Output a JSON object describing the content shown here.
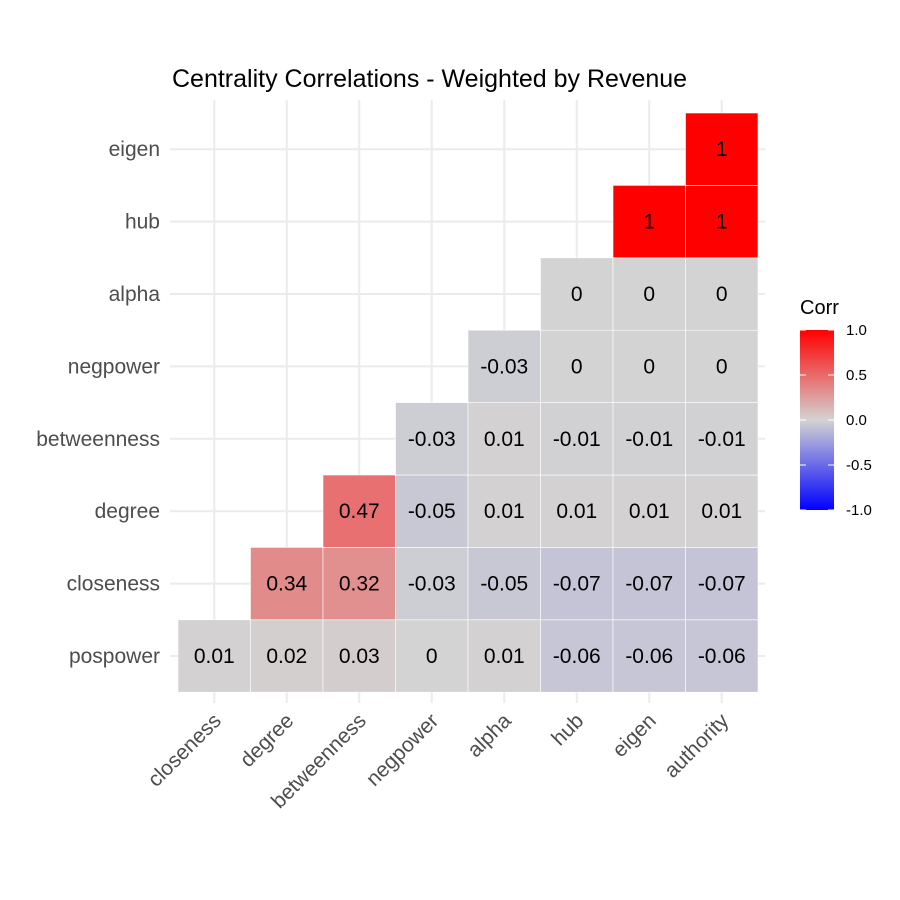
{
  "chart_data": {
    "type": "heatmap",
    "title": "Centrality Correlations - Weighted by Revenue",
    "x_categories": [
      "closeness",
      "degree",
      "betweenness",
      "negpower",
      "alpha",
      "hub",
      "eigen",
      "authority"
    ],
    "y_categories": [
      "pospower",
      "closeness",
      "degree",
      "betweenness",
      "negpower",
      "alpha",
      "hub",
      "eigen"
    ],
    "cells": [
      {
        "x": "closeness",
        "y": "pospower",
        "value": 0.01,
        "label": "0.01"
      },
      {
        "x": "degree",
        "y": "pospower",
        "value": 0.02,
        "label": "0.02"
      },
      {
        "x": "betweenness",
        "y": "pospower",
        "value": 0.03,
        "label": "0.03"
      },
      {
        "x": "negpower",
        "y": "pospower",
        "value": 0,
        "label": "0"
      },
      {
        "x": "alpha",
        "y": "pospower",
        "value": 0.01,
        "label": "0.01"
      },
      {
        "x": "hub",
        "y": "pospower",
        "value": -0.06,
        "label": "-0.06"
      },
      {
        "x": "eigen",
        "y": "pospower",
        "value": -0.06,
        "label": "-0.06"
      },
      {
        "x": "authority",
        "y": "pospower",
        "value": -0.06,
        "label": "-0.06"
      },
      {
        "x": "degree",
        "y": "closeness",
        "value": 0.34,
        "label": "0.34"
      },
      {
        "x": "betweenness",
        "y": "closeness",
        "value": 0.32,
        "label": "0.32"
      },
      {
        "x": "negpower",
        "y": "closeness",
        "value": -0.03,
        "label": "-0.03"
      },
      {
        "x": "alpha",
        "y": "closeness",
        "value": -0.05,
        "label": "-0.05"
      },
      {
        "x": "hub",
        "y": "closeness",
        "value": -0.07,
        "label": "-0.07"
      },
      {
        "x": "eigen",
        "y": "closeness",
        "value": -0.07,
        "label": "-0.07"
      },
      {
        "x": "authority",
        "y": "closeness",
        "value": -0.07,
        "label": "-0.07"
      },
      {
        "x": "betweenness",
        "y": "degree",
        "value": 0.47,
        "label": "0.47"
      },
      {
        "x": "negpower",
        "y": "degree",
        "value": -0.05,
        "label": "-0.05"
      },
      {
        "x": "alpha",
        "y": "degree",
        "value": 0.01,
        "label": "0.01"
      },
      {
        "x": "hub",
        "y": "degree",
        "value": 0.01,
        "label": "0.01"
      },
      {
        "x": "eigen",
        "y": "degree",
        "value": 0.01,
        "label": "0.01"
      },
      {
        "x": "authority",
        "y": "degree",
        "value": 0.01,
        "label": "0.01"
      },
      {
        "x": "negpower",
        "y": "betweenness",
        "value": -0.03,
        "label": "-0.03"
      },
      {
        "x": "alpha",
        "y": "betweenness",
        "value": 0.01,
        "label": "0.01"
      },
      {
        "x": "hub",
        "y": "betweenness",
        "value": -0.01,
        "label": "-0.01"
      },
      {
        "x": "eigen",
        "y": "betweenness",
        "value": -0.01,
        "label": "-0.01"
      },
      {
        "x": "authority",
        "y": "betweenness",
        "value": -0.01,
        "label": "-0.01"
      },
      {
        "x": "alpha",
        "y": "negpower",
        "value": -0.03,
        "label": "-0.03"
      },
      {
        "x": "hub",
        "y": "negpower",
        "value": 0,
        "label": "0"
      },
      {
        "x": "eigen",
        "y": "negpower",
        "value": 0,
        "label": "0"
      },
      {
        "x": "authority",
        "y": "negpower",
        "value": 0,
        "label": "0"
      },
      {
        "x": "hub",
        "y": "alpha",
        "value": 0,
        "label": "0"
      },
      {
        "x": "eigen",
        "y": "alpha",
        "value": 0,
        "label": "0"
      },
      {
        "x": "authority",
        "y": "alpha",
        "value": 0,
        "label": "0"
      },
      {
        "x": "eigen",
        "y": "hub",
        "value": 1,
        "label": "1"
      },
      {
        "x": "authority",
        "y": "hub",
        "value": 1,
        "label": "1"
      },
      {
        "x": "authority",
        "y": "eigen",
        "value": 1,
        "label": "1"
      }
    ],
    "legend": {
      "title": "Corr",
      "ticks": [
        {
          "value": 1.0,
          "label": "1.0"
        },
        {
          "value": 0.5,
          "label": "0.5"
        },
        {
          "value": 0.0,
          "label": "0.0"
        },
        {
          "value": -0.5,
          "label": "-0.5"
        },
        {
          "value": -1.0,
          "label": "-1.0"
        }
      ],
      "placement": "right",
      "range": [
        -1,
        1
      ]
    },
    "colors": {
      "low": "#0000ff",
      "mid": "#d3d3d3",
      "high": "#ff0000"
    },
    "grid": true
  }
}
